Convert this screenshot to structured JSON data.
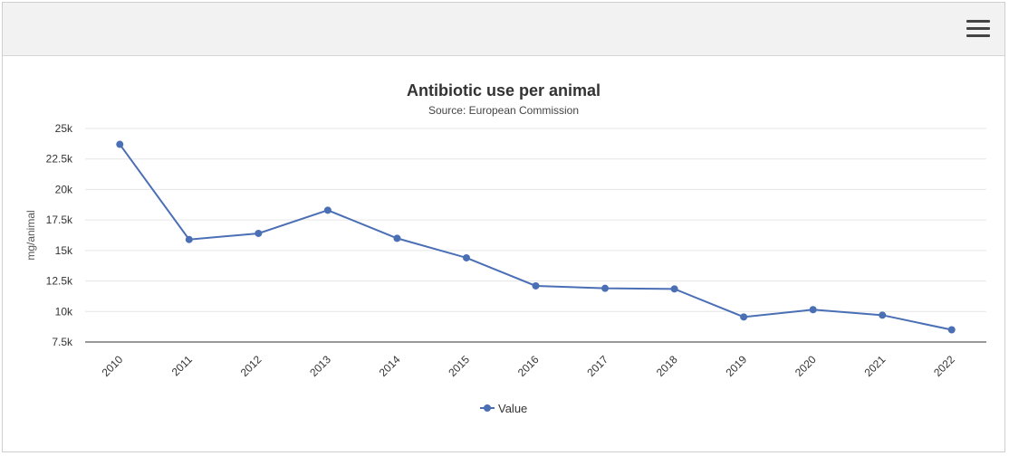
{
  "toolbar": {
    "menu_icon": "hamburger-menu-icon"
  },
  "colors": {
    "series": "#4a6fb5",
    "grid": "#e6e6e6",
    "axis": "#333333",
    "text": "#333333",
    "subtext": "#444444"
  },
  "chart_data": {
    "type": "line",
    "title": "Antibiotic use per animal",
    "subtitle": "Source: European Commission",
    "xlabel": "",
    "ylabel": "mg/animal",
    "ylim": [
      7500,
      25000
    ],
    "yticks": [
      7500,
      10000,
      12500,
      15000,
      17500,
      20000,
      22500,
      25000
    ],
    "ytick_labels": [
      "7.5k",
      "10k",
      "12.5k",
      "15k",
      "17.5k",
      "20k",
      "22.5k",
      "25k"
    ],
    "categories": [
      "2010",
      "2011",
      "2012",
      "2013",
      "2014",
      "2015",
      "2016",
      "2017",
      "2018",
      "2019",
      "2020",
      "2021",
      "2022"
    ],
    "series": [
      {
        "name": "Value",
        "values": [
          23700,
          15900,
          16400,
          18300,
          16000,
          14400,
          12100,
          11900,
          11850,
          9550,
          10150,
          9700,
          8500
        ]
      }
    ],
    "grid": true,
    "legend": "bottom-center"
  }
}
